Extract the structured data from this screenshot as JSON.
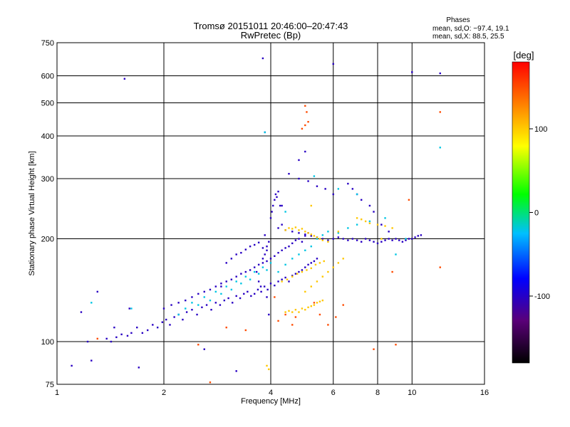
{
  "chart_data": {
    "type": "scatter",
    "title": "Tromsø 20151011 20:46:00–20:47:43",
    "subtitle": "RwPretec (Bp)",
    "xlabel": "Frequency [MHz]",
    "ylabel": "Stationary phase Virtual Height [km]",
    "x_scale": "log",
    "y_scale": "log",
    "xlim": [
      1,
      16
    ],
    "ylim": [
      75,
      750
    ],
    "x_ticks": [
      1,
      2,
      4,
      6,
      8,
      10,
      16
    ],
    "y_ticks": [
      75,
      100,
      200,
      300,
      400,
      500,
      600,
      750
    ],
    "grid": true,
    "stats": {
      "heading": "Phases",
      "line_o": "mean, sd,O: −97.4, 19.1",
      "line_x": "mean, sd,X:  88.5, 25.5"
    },
    "colorbar": {
      "label": "[deg]",
      "range": [
        -180,
        180
      ],
      "ticks": [
        -100,
        0,
        100
      ],
      "colormap": [
        "#000000",
        "#5a0078",
        "#0000ff",
        "#00bfff",
        "#00ff00",
        "#ffff00",
        "#ff8000",
        "#ff0000"
      ]
    },
    "series": [
      {
        "x": [
          1.17,
          1.22,
          1.3,
          1.38,
          1.42,
          1.47,
          1.52,
          1.58,
          1.62,
          1.68,
          1.74,
          1.8,
          1.86,
          1.92,
          1.98,
          2.03,
          2.08,
          2.14,
          2.2,
          2.26,
          2.32,
          2.4,
          2.48,
          2.56,
          2.64,
          2.72,
          2.8,
          2.88,
          2.96,
          3.04,
          3.12,
          3.2,
          3.28,
          3.36,
          3.44,
          3.52,
          3.6,
          3.68,
          3.76,
          3.84,
          3.92,
          4.0,
          4.1,
          4.2,
          4.3,
          4.4,
          4.5,
          4.6,
          4.7,
          4.8,
          4.9,
          5.0,
          5.1,
          5.2,
          5.3,
          5.4,
          2.0,
          2.1,
          2.2,
          2.3,
          2.4,
          2.5,
          2.6,
          2.7,
          2.8,
          2.9,
          3.0,
          3.1,
          3.2,
          3.3,
          3.4,
          3.5,
          3.6,
          3.7,
          3.8,
          3.9,
          4.0,
          4.1,
          4.2,
          4.3,
          4.4,
          4.5,
          4.6,
          4.7,
          4.8,
          4.9,
          5.0,
          5.1,
          3.0,
          3.1,
          3.2,
          3.3,
          3.4,
          3.5,
          3.6,
          3.7,
          3.8,
          3.9,
          3.95,
          4.0,
          4.03,
          4.06,
          4.1,
          4.13,
          4.16,
          4.2,
          4.25,
          4.3,
          3.65,
          3.7,
          3.75,
          3.85,
          3.9,
          4.2,
          4.4,
          4.6,
          4.8,
          5.0,
          5.2,
          5.4,
          5.6,
          5.8,
          6.0,
          6.2,
          6.4,
          6.6,
          6.8,
          7.0,
          7.2,
          7.4,
          7.6,
          7.8,
          8.0,
          8.2,
          8.4,
          8.6,
          8.8,
          9.0,
          9.2,
          9.4,
          9.6,
          9.8,
          10.0,
          10.2,
          10.4,
          10.6,
          6.6,
          6.8,
          7.0,
          7.2,
          7.6,
          7.8,
          8.2,
          8.6,
          4.5,
          4.8,
          5.1,
          5.4,
          5.7,
          6.0,
          1.1,
          1.25,
          1.45,
          1.6,
          1.7,
          2.6,
          2.9,
          3.2,
          3.9,
          3.95,
          3.85,
          3.8,
          4.3,
          4.8,
          5.0,
          1.55,
          3.8,
          3.85,
          6.0,
          10.0,
          12.0
        ],
        "y": [
          122,
          100,
          140,
          102,
          100,
          103,
          105,
          104,
          106,
          110,
          106,
          108,
          112,
          110,
          114,
          116,
          112,
          118,
          120,
          116,
          122,
          124,
          120,
          126,
          128,
          124,
          130,
          128,
          132,
          134,
          130,
          136,
          134,
          138,
          140,
          136,
          138,
          142,
          140,
          145,
          142,
          148,
          146,
          150,
          152,
          154,
          150,
          156,
          158,
          160,
          162,
          165,
          168,
          170,
          172,
          175,
          125,
          128,
          130,
          132,
          135,
          138,
          140,
          142,
          145,
          148,
          150,
          152,
          155,
          158,
          160,
          162,
          165,
          168,
          170,
          172,
          175,
          178,
          182,
          185,
          188,
          190,
          194,
          198,
          200,
          196,
          204,
          208,
          170,
          175,
          180,
          182,
          186,
          190,
          192,
          195,
          188,
          185,
          196,
          230,
          240,
          250,
          260,
          270,
          265,
          275,
          250,
          220,
          160,
          150,
          145,
          205,
          190,
          215,
          212,
          210,
          208,
          206,
          204,
          202,
          200,
          198,
          200,
          202,
          200,
          198,
          200,
          198,
          196,
          200,
          198,
          196,
          194,
          196,
          198,
          200,
          198,
          200,
          198,
          196,
          198,
          200,
          200,
          202,
          204,
          205,
          290,
          280,
          270,
          260,
          250,
          240,
          220,
          210,
          310,
          300,
          295,
          285,
          280,
          270,
          85,
          88,
          110,
          125,
          84,
          95,
          145,
          82,
          135,
          120,
          180,
          175,
          250,
          340,
          360,
          588,
          675,
          410,
          650,
          615,
          610
        ],
        "value": [
          -100
        ]
      },
      {
        "x": [
          2.2,
          2.3,
          2.4,
          2.5,
          2.6,
          2.7,
          2.8,
          2.9,
          3.0,
          3.1,
          3.2,
          3.3,
          3.4,
          3.5,
          3.6,
          3.7,
          3.8,
          3.9,
          4.0,
          4.2,
          4.4,
          4.6,
          4.8,
          5.0,
          5.2,
          5.4,
          5.6,
          5.8,
          6.2,
          6.6,
          7.0,
          7.6,
          8.4,
          9.0,
          9.6,
          1.25,
          1.62,
          3.85,
          4.4,
          5.3,
          6.2,
          7.0,
          12.0
        ],
        "y": [
          120,
          125,
          130,
          128,
          135,
          132,
          140,
          138,
          145,
          142,
          150,
          148,
          155,
          152,
          160,
          158,
          165,
          162,
          170,
          160,
          168,
          175,
          180,
          185,
          190,
          200,
          205,
          210,
          208,
          215,
          220,
          225,
          230,
          180,
          200,
          130,
          125,
          410,
          240,
          305,
          280,
          270,
          370
        ],
        "value": [
          -20
        ]
      },
      {
        "x": [
          4.4,
          4.5,
          4.6,
          4.7,
          4.8,
          4.9,
          5.0,
          5.1,
          5.2,
          5.3,
          5.4,
          5.5,
          5.6,
          5.8,
          4.4,
          4.5,
          4.6,
          4.7,
          4.8,
          4.9,
          5.0,
          5.1,
          5.2,
          5.3,
          5.4,
          5.5,
          5.6,
          4.3,
          4.45,
          4.6,
          4.75,
          4.9,
          5.05,
          5.2,
          5.35,
          5.5,
          5.65,
          5.0,
          5.2,
          5.4,
          5.6,
          5.8,
          6.0,
          6.2,
          6.4,
          7.0,
          7.2,
          7.4,
          7.6,
          8.0,
          8.4,
          8.8,
          3.9,
          3.95,
          5.2,
          6.2,
          8.2
        ],
        "y": [
          212,
          215,
          214,
          216,
          212,
          214,
          210,
          208,
          206,
          204,
          202,
          200,
          198,
          196,
          122,
          123,
          122,
          124,
          122,
          125,
          124,
          126,
          127,
          128,
          130,
          131,
          132,
          150,
          152,
          155,
          158,
          160,
          162,
          164,
          168,
          170,
          172,
          140,
          145,
          150,
          155,
          160,
          165,
          170,
          175,
          230,
          228,
          225,
          222,
          220,
          218,
          215,
          85,
          83,
          250,
          210,
          200
        ],
        "value": [
          100
        ]
      },
      {
        "x": [
          5.0,
          5.05,
          5.0,
          4.1,
          4.4,
          4.7,
          5.3,
          5.8,
          6.4,
          7.8,
          8.8,
          9.8,
          12.0,
          12.0,
          2.5,
          2.7,
          1.3,
          3.0,
          3.4,
          4.2,
          4.6,
          5.5,
          6.1,
          9.0,
          5.1,
          4.9
        ],
        "y": [
          490,
          470,
          430,
          135,
          120,
          118,
          130,
          112,
          128,
          95,
          160,
          260,
          470,
          165,
          98,
          76,
          102,
          110,
          108,
          115,
          112,
          120,
          118,
          98,
          440,
          420
        ],
        "value": [
          150
        ]
      }
    ]
  }
}
